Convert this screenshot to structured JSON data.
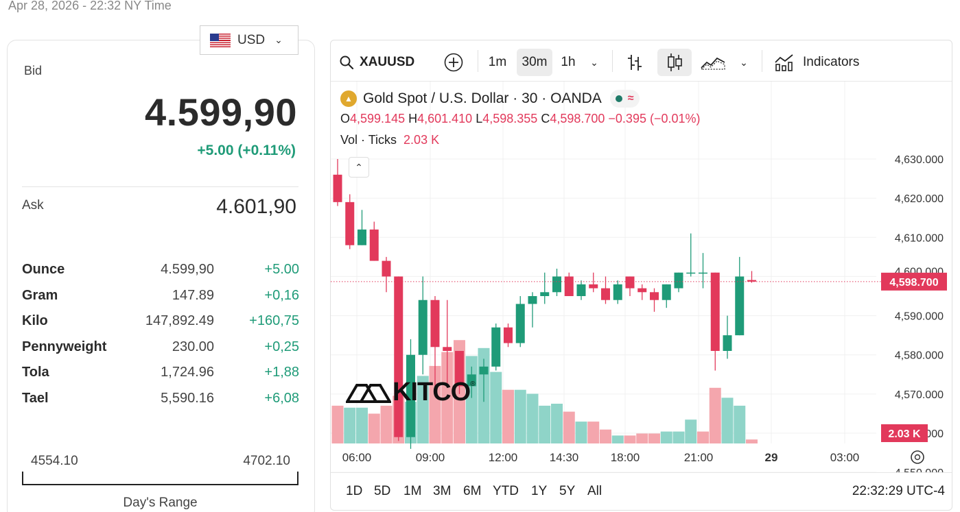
{
  "timestamp": "Apr 28, 2026 - 22:32 NY Time",
  "currency": {
    "label": "USD"
  },
  "bid": {
    "label": "Bid",
    "value": "4.599,90",
    "change": "+5.00 (+0.11%)"
  },
  "ask": {
    "label": "Ask",
    "value": "4.601,90"
  },
  "units": [
    {
      "name": "Ounce",
      "price": "4.599,90",
      "change": "+5.00"
    },
    {
      "name": "Gram",
      "price": "147.89",
      "change": "+0,16"
    },
    {
      "name": "Kilo",
      "price": "147,892.49",
      "change": "+160,75"
    },
    {
      "name": "Pennyweight",
      "price": "230.00",
      "change": "+0,25"
    },
    {
      "name": "Tola",
      "price": "1,724.96",
      "change": "+1,88"
    },
    {
      "name": "Tael",
      "price": "5,590.16",
      "change": "+6,08"
    }
  ],
  "day_range": {
    "low": "4554.10",
    "high": "4702.10",
    "label": "Day's Range"
  },
  "chart": {
    "symbol": "XAUUSD",
    "intervals": [
      "1m",
      "30m",
      "1h"
    ],
    "active_interval": "30m",
    "indicators_label": "Indicators",
    "title": "Gold Spot / U.S. Dollar · 30 · OANDA",
    "ohlc": {
      "o_label": "O",
      "o": "4,599.145",
      "h_label": "H",
      "h": "4,601.410",
      "l_label": "L",
      "l": "4,598.355",
      "c_label": "C",
      "c": "4,598.700",
      "chg": "−0.395 (−0.01%)"
    },
    "vol_label": "Vol · Ticks",
    "vol_value": "2.03 K",
    "price_axis": [
      "4,630.000",
      "4,620.000",
      "4,610.000",
      "4,590.000",
      "4,580.000",
      "4,570.000",
      "4,560.000"
    ],
    "price_axis_partial_top": "4,600.000",
    "price_axis_partial_bottom": "4,550.000",
    "last_price": "4,598.700",
    "last_volume": "2.03 K",
    "time_axis": [
      "06:00",
      "09:00",
      "12:00",
      "14:30",
      "18:00",
      "21:00",
      "29",
      "03:00"
    ],
    "ranges": [
      "1D",
      "5D",
      "1M",
      "3M",
      "6M",
      "YTD",
      "1Y",
      "5Y",
      "All"
    ],
    "clock": "22:32:29 UTC-4",
    "watermark": "KITCO",
    "colors": {
      "up": "#1f9b78",
      "down": "#e2395b",
      "vol_up": "#8fd4c8",
      "vol_down": "#f4a6ad"
    },
    "candles": [
      {
        "o": 4626,
        "h": 4630,
        "l": 4618,
        "c": 4619
      },
      {
        "o": 4619,
        "h": 4621,
        "l": 4607,
        "c": 4608
      },
      {
        "o": 4608,
        "h": 4617,
        "l": 4608,
        "c": 4612
      },
      {
        "o": 4612,
        "h": 4614,
        "l": 4604,
        "c": 4604
      },
      {
        "o": 4604,
        "h": 4605,
        "l": 4596,
        "c": 4600
      },
      {
        "o": 4600,
        "h": 4600,
        "l": 4558,
        "c": 4559
      },
      {
        "o": 4559,
        "h": 4584,
        "l": 4556,
        "c": 4580
      },
      {
        "o": 4580,
        "h": 4600,
        "l": 4575,
        "c": 4594
      },
      {
        "o": 4594,
        "h": 4595,
        "l": 4572,
        "c": 4582
      },
      {
        "o": 4582,
        "h": 4594,
        "l": 4572,
        "c": 4581
      },
      {
        "o": 4581,
        "h": 4581,
        "l": 4570,
        "c": 4572
      },
      {
        "o": 4572,
        "h": 4577,
        "l": 4569,
        "c": 4575
      },
      {
        "o": 4575,
        "h": 4579,
        "l": 4568,
        "c": 4577
      },
      {
        "o": 4577,
        "h": 4588,
        "l": 4576,
        "c": 4587
      },
      {
        "o": 4587,
        "h": 4588,
        "l": 4582,
        "c": 4583
      },
      {
        "o": 4583,
        "h": 4595,
        "l": 4582,
        "c": 4593
      },
      {
        "o": 4593,
        "h": 4596,
        "l": 4587,
        "c": 4595
      },
      {
        "o": 4595,
        "h": 4601,
        "l": 4593,
        "c": 4596
      },
      {
        "o": 4596,
        "h": 4602,
        "l": 4595,
        "c": 4600
      },
      {
        "o": 4600,
        "h": 4601,
        "l": 4595,
        "c": 4595
      },
      {
        "o": 4595,
        "h": 4599,
        "l": 4594,
        "c": 4598
      },
      {
        "o": 4598,
        "h": 4601,
        "l": 4596,
        "c": 4597
      },
      {
        "o": 4597,
        "h": 4600,
        "l": 4593,
        "c": 4594
      },
      {
        "o": 4594,
        "h": 4599,
        "l": 4593,
        "c": 4598
      },
      {
        "o": 4600,
        "h": 4600,
        "l": 4595,
        "c": 4597
      },
      {
        "o": 4597,
        "h": 4598,
        "l": 4594,
        "c": 4596
      },
      {
        "o": 4596,
        "h": 4597,
        "l": 4591,
        "c": 4594
      },
      {
        "o": 4594,
        "h": 4598,
        "l": 4592,
        "c": 4598
      },
      {
        "o": 4597,
        "h": 4601,
        "l": 4596,
        "c": 4601
      },
      {
        "o": 4601,
        "h": 4611,
        "l": 4600,
        "c": 4601
      },
      {
        "o": 4601,
        "h": 4606,
        "l": 4597,
        "c": 4601
      },
      {
        "o": 4601,
        "h": 4601,
        "l": 4576,
        "c": 4581
      },
      {
        "o": 4581,
        "h": 4590,
        "l": 4579,
        "c": 4585
      },
      {
        "o": 4585,
        "h": 4605,
        "l": 4585,
        "c": 4600
      },
      {
        "o": 4599.1,
        "h": 4601.4,
        "l": 4598.4,
        "c": 4598.7
      }
    ],
    "volumes": [
      0.95,
      0.9,
      0.9,
      0.75,
      0.95,
      1.2,
      1.05,
      1.7,
      1.95,
      2.3,
      2.6,
      2.2,
      2.4,
      1.8,
      1.35,
      1.35,
      1.25,
      0.95,
      1.0,
      0.8,
      0.55,
      0.55,
      0.35,
      0.2,
      0.2,
      0.25,
      0.25,
      0.3,
      0.3,
      0.6,
      0.3,
      1.4,
      1.15,
      0.95,
      0.1
    ],
    "volume_up": [
      false,
      true,
      true,
      false,
      false,
      false,
      true,
      true,
      false,
      false,
      false,
      true,
      true,
      true,
      false,
      true,
      true,
      true,
      true,
      false,
      true,
      false,
      false,
      true,
      false,
      false,
      false,
      true,
      true,
      true,
      false,
      false,
      true,
      true,
      false
    ]
  }
}
